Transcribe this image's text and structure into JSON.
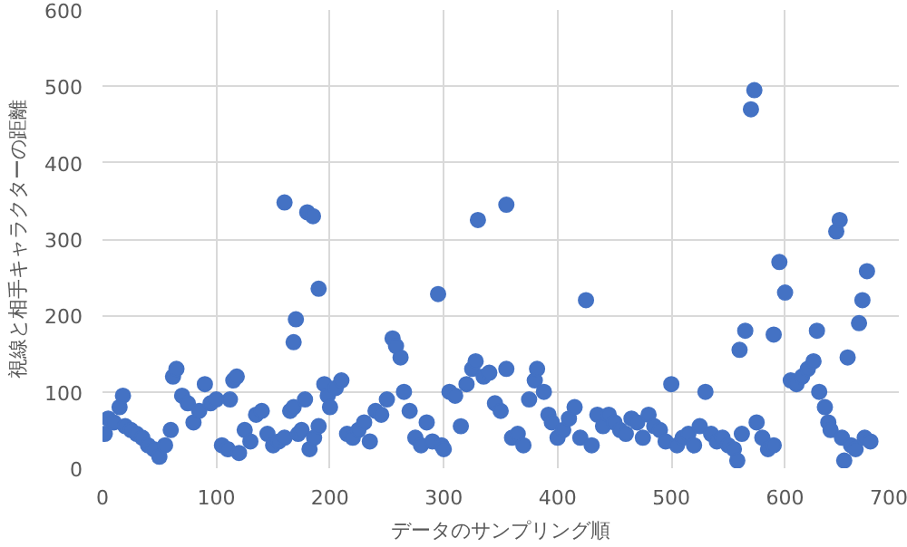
{
  "chart_data": {
    "type": "scatter",
    "xlabel": "データのサンプリング順",
    "ylabel": "視線と相手キャラクターの距離",
    "xlim": [
      0,
      700
    ],
    "ylim": [
      0,
      600
    ],
    "xticks": [
      0,
      100,
      200,
      300,
      400,
      500,
      600,
      700
    ],
    "yticks": [
      0,
      100,
      200,
      300,
      400,
      500,
      600
    ],
    "grid": true,
    "marker": "circle",
    "series": [
      {
        "color": "#4472c4",
        "x": [
          2,
          5,
          10,
          15,
          18,
          20,
          25,
          30,
          35,
          40,
          45,
          50,
          55,
          60,
          62,
          65,
          70,
          75,
          80,
          85,
          90,
          95,
          100,
          105,
          110,
          112,
          115,
          118,
          120,
          125,
          130,
          135,
          140,
          145,
          150,
          155,
          160,
          165,
          168,
          172,
          175,
          178,
          182,
          186,
          190,
          195,
          198,
          200,
          205,
          210,
          215,
          220,
          225,
          230,
          235,
          240,
          245,
          250,
          255,
          258,
          262,
          265,
          270,
          275,
          280,
          285,
          290,
          298,
          300,
          305,
          310,
          315,
          320,
          325,
          328,
          335,
          340,
          345,
          350,
          355,
          360,
          365,
          370,
          375,
          380,
          382,
          388,
          392,
          395,
          400,
          405,
          410,
          415,
          420,
          430,
          435,
          440,
          445,
          450,
          455,
          460,
          465,
          470,
          475,
          480,
          485,
          490,
          495,
          500,
          505,
          510,
          515,
          520,
          525,
          530,
          535,
          540,
          545,
          550,
          555,
          558,
          562,
          575,
          580,
          585,
          590,
          605,
          610,
          615,
          620,
          625,
          628,
          630,
          635,
          638,
          640,
          650,
          652,
          658,
          662,
          670,
          675,
          160,
          180,
          185,
          190,
          170,
          168,
          295,
          330,
          355,
          425,
          570,
          573,
          560,
          565,
          595,
          600,
          645,
          648,
          655,
          665,
          668,
          672,
          590
        ],
        "values": [
          45,
          65,
          60,
          80,
          95,
          55,
          50,
          45,
          40,
          30,
          25,
          15,
          30,
          50,
          120,
          130,
          95,
          85,
          60,
          75,
          110,
          85,
          90,
          30,
          25,
          90,
          115,
          120,
          20,
          50,
          35,
          70,
          75,
          45,
          30,
          35,
          40,
          75,
          80,
          45,
          50,
          90,
          25,
          40,
          55,
          110,
          95,
          80,
          105,
          115,
          45,
          40,
          50,
          60,
          35,
          75,
          70,
          90,
          170,
          160,
          145,
          100,
          75,
          40,
          30,
          60,
          35,
          30,
          25,
          100,
          95,
          55,
          110,
          130,
          140,
          120,
          125,
          85,
          75,
          130,
          40,
          45,
          30,
          90,
          115,
          130,
          100,
          70,
          60,
          40,
          50,
          65,
          80,
          40,
          30,
          70,
          55,
          70,
          60,
          50,
          45,
          65,
          60,
          40,
          70,
          55,
          50,
          35,
          110,
          30,
          40,
          45,
          30,
          55,
          100,
          45,
          35,
          40,
          30,
          25,
          10,
          45,
          60,
          40,
          25,
          30,
          115,
          110,
          120,
          130,
          140,
          180,
          100,
          80,
          60,
          50,
          40,
          10,
          30,
          25,
          40,
          35,
          348,
          335,
          330,
          235,
          195,
          165,
          228,
          325,
          345,
          220,
          470,
          495,
          155,
          180,
          270,
          230,
          310,
          325,
          145,
          190,
          220,
          258,
          175
        ]
      }
    ]
  }
}
